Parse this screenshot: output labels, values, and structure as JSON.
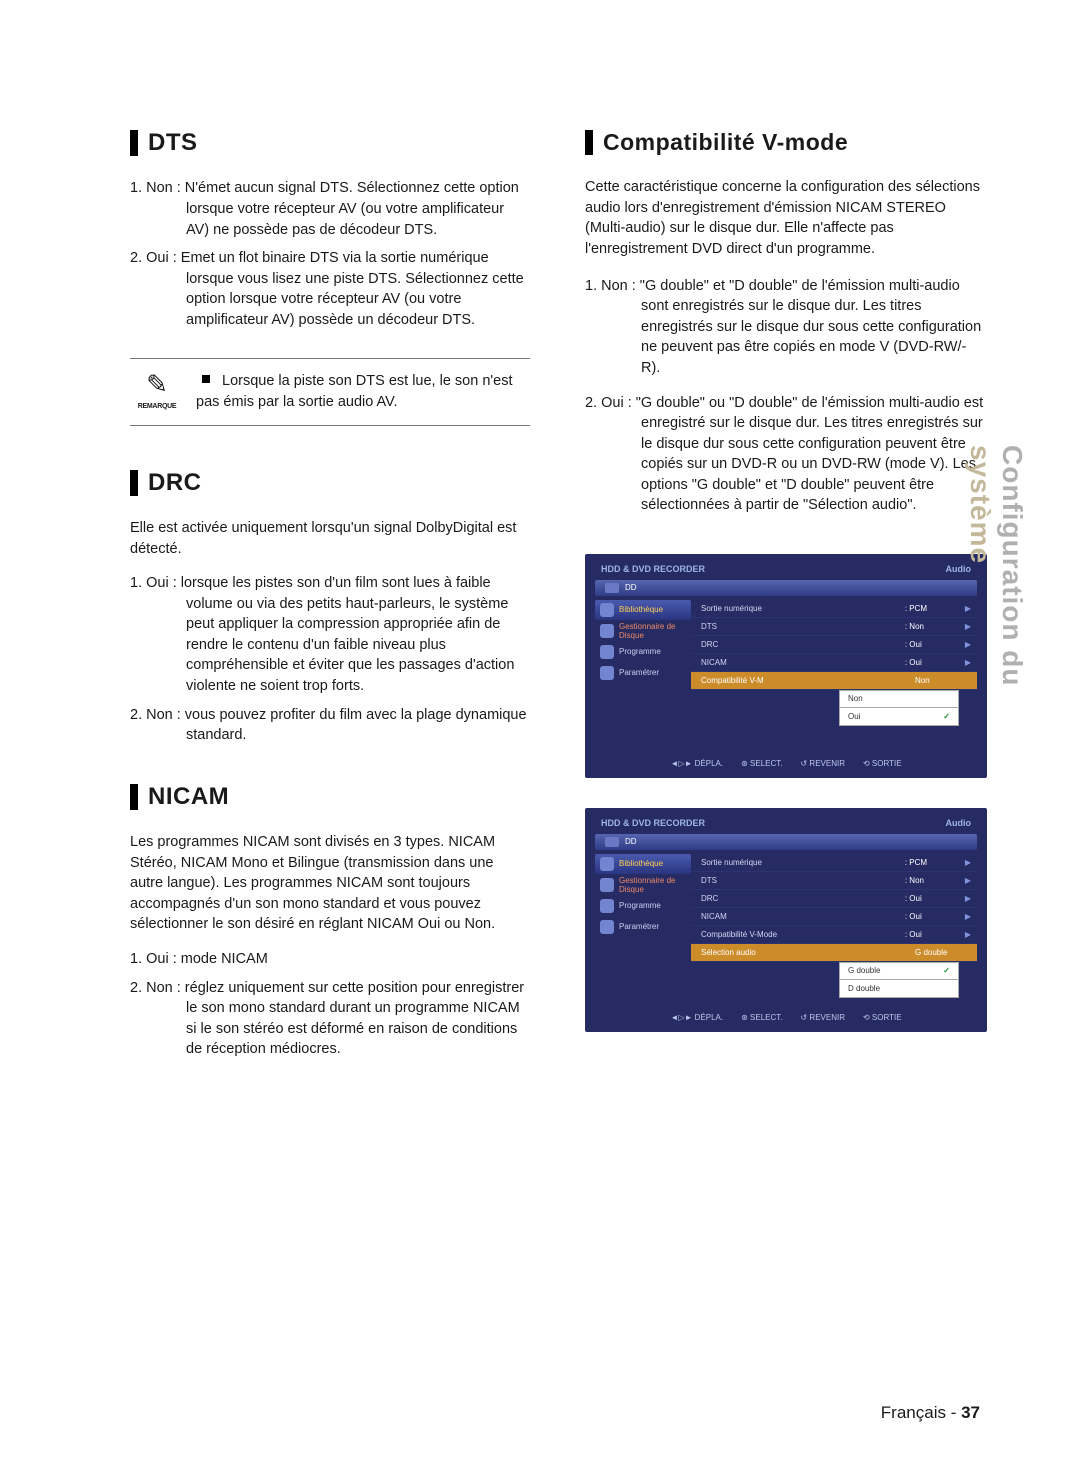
{
  "sideTab": {
    "line1": "Configuration du",
    "line2": "système"
  },
  "footer": {
    "lang": "Français",
    "sep": " - ",
    "page": "37"
  },
  "sections": {
    "dts": {
      "title": "DTS",
      "items": [
        "1. Non : N'émet aucun signal DTS. Sélectionnez cette option lorsque votre récepteur AV (ou votre amplificateur AV) ne possède pas de décodeur DTS.",
        "2. Oui : Emet un flot binaire DTS via la sortie numérique lorsque vous lisez une piste DTS. Sélectionnez cette option lorsque votre récepteur AV (ou votre amplificateur AV) possède un décodeur DTS."
      ],
      "noteLabel": "REMARQUE",
      "note": "Lorsque la piste son DTS est lue, le son n'est pas émis par la sortie audio AV."
    },
    "drc": {
      "title": "DRC",
      "intro": "Elle est activée uniquement lorsqu'un signal DolbyDigital est détecté.",
      "items": [
        "1. Oui : lorsque les pistes son d'un film sont lues à faible volume ou via des petits haut-parleurs, le système peut appliquer la compression appropriée afin de rendre le contenu d'un faible niveau plus compréhensible et éviter que les passages d'action violente ne soient trop forts.",
        "2. Non : vous pouvez profiter du film avec la plage dynamique standard."
      ]
    },
    "nicam": {
      "title": "NICAM",
      "intro": "Les programmes NICAM sont divisés en 3 types. NICAM Stéréo, NICAM Mono et Bilingue (transmission dans une autre langue). Les programmes NICAM sont toujours accompagnés d'un son mono standard et vous pouvez sélectionner le son désiré en réglant NICAM Oui ou Non.",
      "items": [
        "1. Oui : mode NICAM",
        "2. Non : réglez uniquement sur cette position pour enregistrer le son mono standard durant un programme NICAM si le son stéréo est déformé en raison de conditions de réception médiocres."
      ]
    },
    "vmode": {
      "title": "Compatibilité V-mode",
      "intro": "Cette caractéristique concerne la configuration des sélections audio lors d'enregistrement d'émission NICAM STEREO (Multi-audio) sur le disque dur. Elle n'affecte pas l'enregistrement DVD direct d'un programme.",
      "items": [
        "1. Non : \"G double\" et \"D double\" de l'émission multi-audio sont enregistrés sur le disque dur. Les titres enregistrés sur le disque dur sous cette configuration ne peuvent pas être copiés en mode V (DVD-RW/-R).",
        "2. Oui : \"G double\" ou \"D double\" de l'émission multi-audio est enregistré sur le disque dur. Les titres enregistrés sur le disque dur sous cette configuration peuvent être copiés sur un DVD-R ou un DVD-RW (mode V). Les options \"G double\" et \"D double\" peuvent être sélectionnées à partir de \"Sélection audio\"."
      ]
    }
  },
  "osd": {
    "header": {
      "left": "HDD & DVD RECORDER",
      "right": "Audio",
      "tab": "DD"
    },
    "sidebar": [
      {
        "label": "Bibliothèque",
        "sel": true
      },
      {
        "label": "Gestionnaire de Disque",
        "red": true
      },
      {
        "label": "Programme"
      },
      {
        "label": "Paramétrer"
      }
    ],
    "rows": [
      {
        "k": "Sortie numérique",
        "v": ": PCM"
      },
      {
        "k": "DTS",
        "v": ": Non"
      },
      {
        "k": "DRC",
        "v": ": Oui"
      },
      {
        "k": "NICAM",
        "v": ": Oui"
      }
    ],
    "screen1": {
      "hlRow": {
        "k": "Compatibilité V-M",
        "v": "Non"
      },
      "dropdown": [
        "Non",
        "Oui"
      ],
      "checkedIndex": 1
    },
    "screen2": {
      "extraRow": {
        "k": "Compatibilité V-Mode",
        "v": ": Oui"
      },
      "hlRow": {
        "k": "Sélection audio",
        "v": "G double"
      },
      "dropdown": [
        "G double",
        "D double"
      ],
      "checkedIndex": 0
    },
    "footer": [
      "◄▷► DÉPLA.",
      "⊛ SELECT.",
      "↺ REVENIR",
      "⟲ SORTIE"
    ]
  },
  "colors": {
    "osdBg": "#262b63",
    "osdHeader": "#9cb5e2",
    "osdHighlight": "#cc8c2a",
    "sideGrey": "#b0b0b0",
    "sideTan": "#c3b89a"
  }
}
